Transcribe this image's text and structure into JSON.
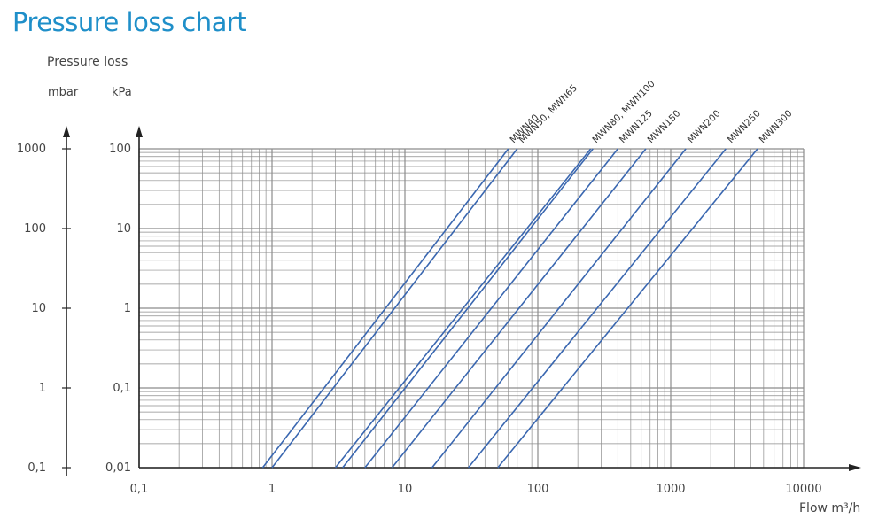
{
  "title": "Pressure loss chart",
  "colors": {
    "title": "#1f8fc9",
    "series": "#3a67b0",
    "grid": "#8c8c8c",
    "axis": "#222222"
  },
  "y_axis": {
    "label": "Pressure loss",
    "unit_mbar": "mbar",
    "unit_kpa": "kPa"
  },
  "x_axis": {
    "label": "Flow",
    "unit": "m³/h"
  },
  "chart_data": {
    "type": "line",
    "title": "Pressure loss chart",
    "xlabel": "Flow m³/h",
    "ylabel": "Pressure loss",
    "x_scale": "log",
    "y_scale": "log",
    "xlim": [
      0.1,
      10000
    ],
    "ylim_kpa": [
      0.01,
      100
    ],
    "ylim_mbar": [
      0.1,
      1000
    ],
    "grid": true,
    "x_ticks": [
      0.1,
      1,
      10,
      100,
      1000,
      10000
    ],
    "x_tick_labels": [
      "0,1",
      "1",
      "10",
      "100",
      "1000",
      "10000"
    ],
    "y_ticks_kpa": [
      0.01,
      0.1,
      1,
      10,
      100
    ],
    "y_tick_labels_kpa": [
      "0,01",
      "0,1",
      "1",
      "10",
      "100"
    ],
    "y_ticks_mbar": [
      0.1,
      1,
      10,
      100,
      1000
    ],
    "y_tick_labels_mbar": [
      "0,1",
      "1",
      "10",
      "100",
      "1000"
    ],
    "series": [
      {
        "name": "MWN40",
        "x": [
          0.85,
          60
        ],
        "y_kpa": [
          0.01,
          100
        ]
      },
      {
        "name": "MWN50, MWN65",
        "x": [
          1.0,
          70
        ],
        "y_kpa": [
          0.01,
          100
        ]
      },
      {
        "name": "MWN80, MWN100",
        "x": [
          3.0,
          250
        ],
        "y_kpa": [
          0.01,
          100
        ]
      },
      {
        "name": "MWN80, MWN100",
        "x": [
          3.4,
          260
        ],
        "y_kpa": [
          0.01,
          100
        ]
      },
      {
        "name": "MWN125",
        "x": [
          5.0,
          400
        ],
        "y_kpa": [
          0.01,
          100
        ]
      },
      {
        "name": "MWN150",
        "x": [
          8.0,
          650
        ],
        "y_kpa": [
          0.01,
          100
        ]
      },
      {
        "name": "MWN200",
        "x": [
          16,
          1300
        ],
        "y_kpa": [
          0.01,
          100
        ]
      },
      {
        "name": "MWN250",
        "x": [
          30,
          2600
        ],
        "y_kpa": [
          0.01,
          100
        ]
      },
      {
        "name": "MWN300",
        "x": [
          50,
          4500
        ],
        "y_kpa": [
          0.01,
          100
        ]
      }
    ]
  }
}
